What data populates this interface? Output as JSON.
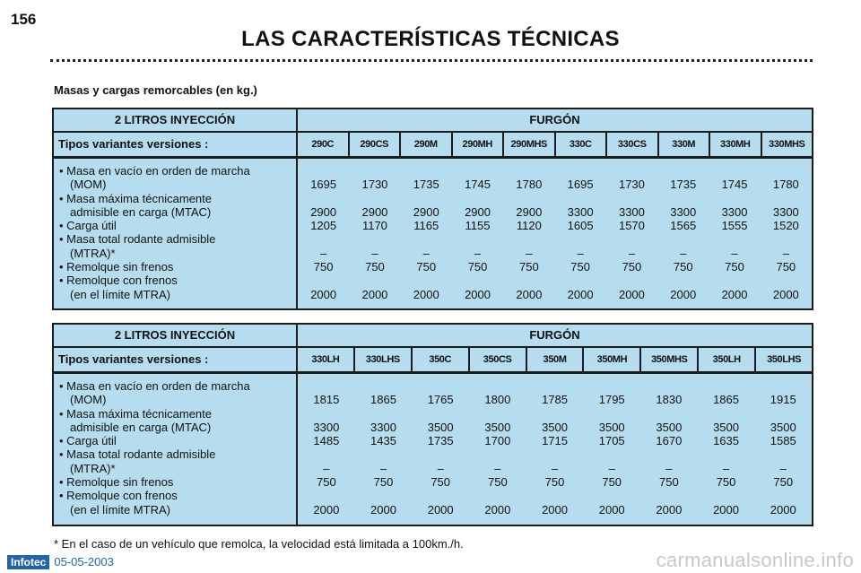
{
  "page_number": "156",
  "title": "LAS CARACTERÍSTICAS TÉCNICAS",
  "subtitle": "Masas y cargas remorcables (en kg.)",
  "tables": [
    {
      "engine": "2 LITROS INYECCIÓN",
      "body_type": "FURGÓN",
      "versions_label": "Tipos variantes versiones :",
      "versions": [
        "290C",
        "290CS",
        "290M",
        "290MH",
        "290MHS",
        "330C",
        "330CS",
        "330M",
        "330MH",
        "330MHS"
      ],
      "rows": [
        {
          "label": [
            "• Masa en vacío en orden de marcha",
            "(MOM)"
          ],
          "values": [
            "1695",
            "1730",
            "1735",
            "1745",
            "1780",
            "1695",
            "1730",
            "1735",
            "1745",
            "1780"
          ]
        },
        {
          "label": [
            "• Masa máxima técnicamente",
            "admisible en carga (MTAC)"
          ],
          "values": [
            "2900",
            "2900",
            "2900",
            "2900",
            "2900",
            "3300",
            "3300",
            "3300",
            "3300",
            "3300"
          ]
        },
        {
          "label": [
            "• Carga útil"
          ],
          "values": [
            "1205",
            "1170",
            "1165",
            "1155",
            "1120",
            "1605",
            "1570",
            "1565",
            "1555",
            "1520"
          ]
        },
        {
          "label": [
            "• Masa total rodante admisible",
            "(MTRA)*"
          ],
          "values": [
            "–",
            "–",
            "–",
            "–",
            "–",
            "–",
            "–",
            "–",
            "–",
            "–"
          ]
        },
        {
          "label": [
            "• Remolque sin frenos"
          ],
          "values": [
            "750",
            "750",
            "750",
            "750",
            "750",
            "750",
            "750",
            "750",
            "750",
            "750"
          ]
        },
        {
          "label": [
            "• Remolque con frenos",
            "(en el límite MTRA)"
          ],
          "values": [
            "2000",
            "2000",
            "2000",
            "2000",
            "2000",
            "2000",
            "2000",
            "2000",
            "2000",
            "2000"
          ]
        }
      ]
    },
    {
      "engine": "2 LITROS INYECCIÓN",
      "body_type": "FURGÓN",
      "versions_label": "Tipos variantes versiones :",
      "versions": [
        "330LH",
        "330LHS",
        "350C",
        "350CS",
        "350M",
        "350MH",
        "350MHS",
        "350LH",
        "350LHS"
      ],
      "rows": [
        {
          "label": [
            "• Masa en vacío en orden de marcha",
            "(MOM)"
          ],
          "values": [
            "1815",
            "1865",
            "1765",
            "1800",
            "1785",
            "1795",
            "1830",
            "1865",
            "1915"
          ]
        },
        {
          "label": [
            "• Masa máxima técnicamente",
            "admisible en carga (MTAC)"
          ],
          "values": [
            "3300",
            "3300",
            "3500",
            "3500",
            "3500",
            "3500",
            "3500",
            "3500",
            "3500"
          ]
        },
        {
          "label": [
            "• Carga útil"
          ],
          "values": [
            "1485",
            "1435",
            "1735",
            "1700",
            "1715",
            "1705",
            "1670",
            "1635",
            "1585"
          ]
        },
        {
          "label": [
            "• Masa total rodante admisible",
            "(MTRA)*"
          ],
          "values": [
            "–",
            "–",
            "–",
            "–",
            "–",
            "–",
            "–",
            "–",
            "–"
          ]
        },
        {
          "label": [
            "• Remolque sin frenos"
          ],
          "values": [
            "750",
            "750",
            "750",
            "750",
            "750",
            "750",
            "750",
            "750",
            "750"
          ]
        },
        {
          "label": [
            "• Remolque con frenos",
            "(en el límite MTRA)"
          ],
          "values": [
            "2000",
            "2000",
            "2000",
            "2000",
            "2000",
            "2000",
            "2000",
            "2000",
            "2000"
          ]
        }
      ]
    }
  ],
  "footnote": "* En el caso de un vehículo que remolca, la velocidad está limitada a 100km./h.",
  "footer": {
    "brand": "Infotec",
    "date": "05-05-2003"
  },
  "watermark": "carmanualsonline.info"
}
